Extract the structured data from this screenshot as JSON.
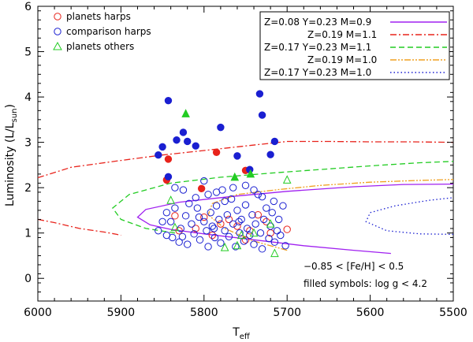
{
  "chart_data": {
    "type": "scatter",
    "xlabel": "T",
    "xlabel_sub": "eff",
    "ylabel": "Luminosity (L/L",
    "ylabel_sub": "sun",
    "ylabel_close": ")",
    "xlim": [
      6000,
      5500
    ],
    "ylim": [
      -0.5,
      6.0
    ],
    "x_ticks": [
      6000,
      5900,
      5800,
      5700,
      5600,
      5500
    ],
    "y_ticks": [
      0,
      1,
      2,
      3,
      4,
      5,
      6
    ],
    "x_tick_labels": [
      "6000",
      "5900",
      "5800",
      "5700",
      "5600",
      "5500"
    ],
    "y_tick_labels": [
      "0",
      "1",
      "2",
      "3",
      "4",
      "5",
      "6"
    ],
    "grid": false,
    "annotations": [
      {
        "text": "−0.85 < [Fe/H] < 0.5"
      },
      {
        "text": "filled symbols: log g < 4.2"
      }
    ],
    "legend_points": [
      {
        "label": "planets harps",
        "marker": "circle",
        "color": "#e8231b"
      },
      {
        "label": "comparison harps",
        "marker": "circle",
        "color": "#1a1fd1"
      },
      {
        "label": "planets others",
        "marker": "triangle",
        "color": "#22cc22"
      }
    ],
    "legend_tracks": [
      {
        "label": "Z=0.08 Y=0.23 M=0.9",
        "color": "#a020f0",
        "dash": "solid"
      },
      {
        "label": "Z=0.19 M=1.1",
        "color": "#e8231b",
        "dash": "dashdot"
      },
      {
        "label": "Z=0.17 Y=0.23 M=1.1",
        "color": "#22cc22",
        "dash": "dashed"
      },
      {
        "label": "Z=0.19 M=1.0",
        "color": "#f0a020",
        "dash": "dashdotdot"
      },
      {
        "label": "Z=0.17 Y=0.23 M=1.0",
        "color": "#1a1fd1",
        "dash": "dotted"
      }
    ],
    "tracks": [
      {
        "name": "Z=0.08 Y=0.23 M=0.9",
        "points": [
          [
            5575,
            0.55
          ],
          [
            5620,
            0.62
          ],
          [
            5680,
            0.72
          ],
          [
            5740,
            0.85
          ],
          [
            5800,
            0.98
          ],
          [
            5840,
            1.08
          ],
          [
            5865,
            1.18
          ],
          [
            5880,
            1.35
          ],
          [
            5870,
            1.52
          ],
          [
            5830,
            1.68
          ],
          [
            5770,
            1.8
          ],
          [
            5700,
            1.92
          ],
          [
            5620,
            2.02
          ],
          [
            5560,
            2.07
          ],
          [
            5500,
            2.08
          ]
        ]
      },
      {
        "name": "Z=0.19 M=1.1",
        "points": [
          [
            6000,
            1.3
          ],
          [
            5980,
            1.23
          ],
          [
            5950,
            1.1
          ],
          [
            5920,
            1.02
          ],
          [
            5905,
            0.97
          ],
          [
            5900,
            0.95
          ]
        ],
        "segment2": [
          [
            6000,
            2.22
          ],
          [
            5960,
            2.45
          ],
          [
            5900,
            2.6
          ],
          [
            5850,
            2.72
          ],
          [
            5800,
            2.82
          ],
          [
            5750,
            2.92
          ],
          [
            5700,
            3.02
          ],
          [
            5650,
            3.02
          ],
          [
            5600,
            3.01
          ],
          [
            5550,
            3.01
          ],
          [
            5500,
            3.0
          ]
        ]
      },
      {
        "name": "Z=0.17 Y=0.23 M=1.1",
        "points": [
          [
            5835,
            1.0
          ],
          [
            5870,
            1.1
          ],
          [
            5900,
            1.3
          ],
          [
            5910,
            1.55
          ],
          [
            5890,
            1.85
          ],
          [
            5840,
            2.1
          ],
          [
            5780,
            2.23
          ],
          [
            5720,
            2.32
          ],
          [
            5660,
            2.4
          ],
          [
            5600,
            2.48
          ],
          [
            5540,
            2.55
          ],
          [
            5500,
            2.58
          ]
        ]
      },
      {
        "name": "Z=0.19 M=1.0",
        "points": [
          [
            5700,
            0.62
          ],
          [
            5740,
            0.82
          ],
          [
            5775,
            1.1
          ],
          [
            5795,
            1.4
          ],
          [
            5790,
            1.65
          ],
          [
            5760,
            1.85
          ],
          [
            5710,
            1.96
          ],
          [
            5660,
            2.05
          ],
          [
            5600,
            2.12
          ],
          [
            5540,
            2.16
          ],
          [
            5500,
            2.18
          ]
        ]
      },
      {
        "name": "Z=0.17 Y=0.23 M=1.0",
        "points": [
          [
            5500,
            0.97
          ],
          [
            5540,
            0.98
          ],
          [
            5580,
            1.05
          ],
          [
            5605,
            1.25
          ],
          [
            5600,
            1.45
          ],
          [
            5570,
            1.6
          ],
          [
            5530,
            1.72
          ],
          [
            5500,
            1.78
          ]
        ]
      }
    ],
    "series": [
      {
        "name": "planets harps",
        "filled": false,
        "marker": "circle",
        "color": "#e8231b",
        "points": [
          [
            5835,
            1.38
          ],
          [
            5800,
            1.35
          ],
          [
            5780,
            1.2
          ],
          [
            5760,
            1.15
          ],
          [
            5745,
            1.05
          ],
          [
            5735,
            1.4
          ],
          [
            5720,
            1.0
          ],
          [
            5790,
            0.95
          ],
          [
            5770,
            1.3
          ],
          [
            5750,
            0.85
          ],
          [
            5810,
            1.1
          ],
          [
            5725,
            1.25
          ],
          [
            5700,
            1.08
          ],
          [
            5830,
            1.05
          ]
        ]
      },
      {
        "name": "planets harps",
        "filled": true,
        "marker": "circle",
        "color": "#e8231b",
        "points": [
          [
            5843,
            2.63
          ],
          [
            5845,
            2.17
          ],
          [
            5803,
            1.98
          ],
          [
            5785,
            2.78
          ],
          [
            5750,
            2.38
          ]
        ]
      },
      {
        "name": "comparison harps",
        "filled": true,
        "marker": "circle",
        "color": "#1a1fd1",
        "points": [
          [
            5843,
            3.92
          ],
          [
            5855,
            2.72
          ],
          [
            5850,
            2.9
          ],
          [
            5833,
            3.05
          ],
          [
            5825,
            3.22
          ],
          [
            5820,
            3.02
          ],
          [
            5810,
            2.92
          ],
          [
            5780,
            3.33
          ],
          [
            5760,
            2.7
          ],
          [
            5733,
            4.07
          ],
          [
            5730,
            3.6
          ],
          [
            5720,
            2.73
          ],
          [
            5715,
            3.02
          ],
          [
            5745,
            2.4
          ],
          [
            5843,
            2.24
          ]
        ]
      },
      {
        "name": "comparison harps",
        "filled": false,
        "marker": "circle",
        "color": "#1a1fd1",
        "points": [
          [
            5855,
            1.05
          ],
          [
            5845,
            0.95
          ],
          [
            5840,
            1.25
          ],
          [
            5835,
            1.55
          ],
          [
            5830,
            0.8
          ],
          [
            5828,
            1.1
          ],
          [
            5825,
            1.95
          ],
          [
            5822,
            1.38
          ],
          [
            5820,
            0.75
          ],
          [
            5815,
            1.2
          ],
          [
            5812,
            0.98
          ],
          [
            5808,
            1.55
          ],
          [
            5805,
            0.85
          ],
          [
            5800,
            1.25
          ],
          [
            5797,
            1.05
          ],
          [
            5795,
            0.7
          ],
          [
            5792,
            1.45
          ],
          [
            5790,
            1.15
          ],
          [
            5787,
            0.9
          ],
          [
            5785,
            1.6
          ],
          [
            5782,
            1.3
          ],
          [
            5780,
            0.78
          ],
          [
            5778,
            1.95
          ],
          [
            5775,
            1.05
          ],
          [
            5772,
            1.4
          ],
          [
            5770,
            0.92
          ],
          [
            5767,
            1.75
          ],
          [
            5765,
            1.2
          ],
          [
            5762,
            0.7
          ],
          [
            5760,
            1.5
          ],
          [
            5757,
            1.0
          ],
          [
            5755,
            1.3
          ],
          [
            5752,
            0.82
          ],
          [
            5750,
            1.62
          ],
          [
            5748,
            1.1
          ],
          [
            5745,
            0.95
          ],
          [
            5742,
            1.4
          ],
          [
            5740,
            0.75
          ],
          [
            5738,
            1.2
          ],
          [
            5735,
            1.85
          ],
          [
            5732,
            1.0
          ],
          [
            5730,
            0.65
          ],
          [
            5728,
            1.3
          ],
          [
            5725,
            1.55
          ],
          [
            5722,
            0.88
          ],
          [
            5720,
            1.15
          ],
          [
            5718,
            1.45
          ],
          [
            5715,
            0.8
          ],
          [
            5712,
            1.05
          ],
          [
            5710,
            1.3
          ],
          [
            5708,
            0.95
          ],
          [
            5705,
            1.6
          ],
          [
            5702,
            0.72
          ],
          [
            5765,
            2.0
          ],
          [
            5750,
            2.05
          ],
          [
            5785,
            1.9
          ],
          [
            5810,
            1.78
          ],
          [
            5800,
            2.15
          ],
          [
            5835,
            2.0
          ],
          [
            5850,
            1.25
          ],
          [
            5845,
            1.45
          ],
          [
            5838,
            0.9
          ],
          [
            5818,
            1.65
          ],
          [
            5795,
            1.85
          ],
          [
            5775,
            1.7
          ],
          [
            5740,
            1.95
          ],
          [
            5730,
            1.8
          ],
          [
            5716,
            1.7
          ],
          [
            5758,
            1.25
          ],
          [
            5788,
            1.1
          ],
          [
            5806,
            1.35
          ],
          [
            5826,
            0.92
          ]
        ]
      },
      {
        "name": "planets others",
        "filled": false,
        "marker": "triangle",
        "color": "#22cc22",
        "points": [
          [
            5700,
            2.17
          ],
          [
            5840,
            1.72
          ],
          [
            5835,
            1.12
          ],
          [
            5760,
            0.72
          ],
          [
            5740,
            1.0
          ],
          [
            5715,
            0.55
          ],
          [
            5720,
            1.2
          ],
          [
            5755,
            0.95
          ],
          [
            5775,
            0.68
          ]
        ]
      },
      {
        "name": "planets others",
        "filled": true,
        "marker": "triangle",
        "color": "#22cc22",
        "points": [
          [
            5822,
            3.63
          ],
          [
            5763,
            2.23
          ],
          [
            5744,
            2.3
          ]
        ]
      }
    ]
  }
}
